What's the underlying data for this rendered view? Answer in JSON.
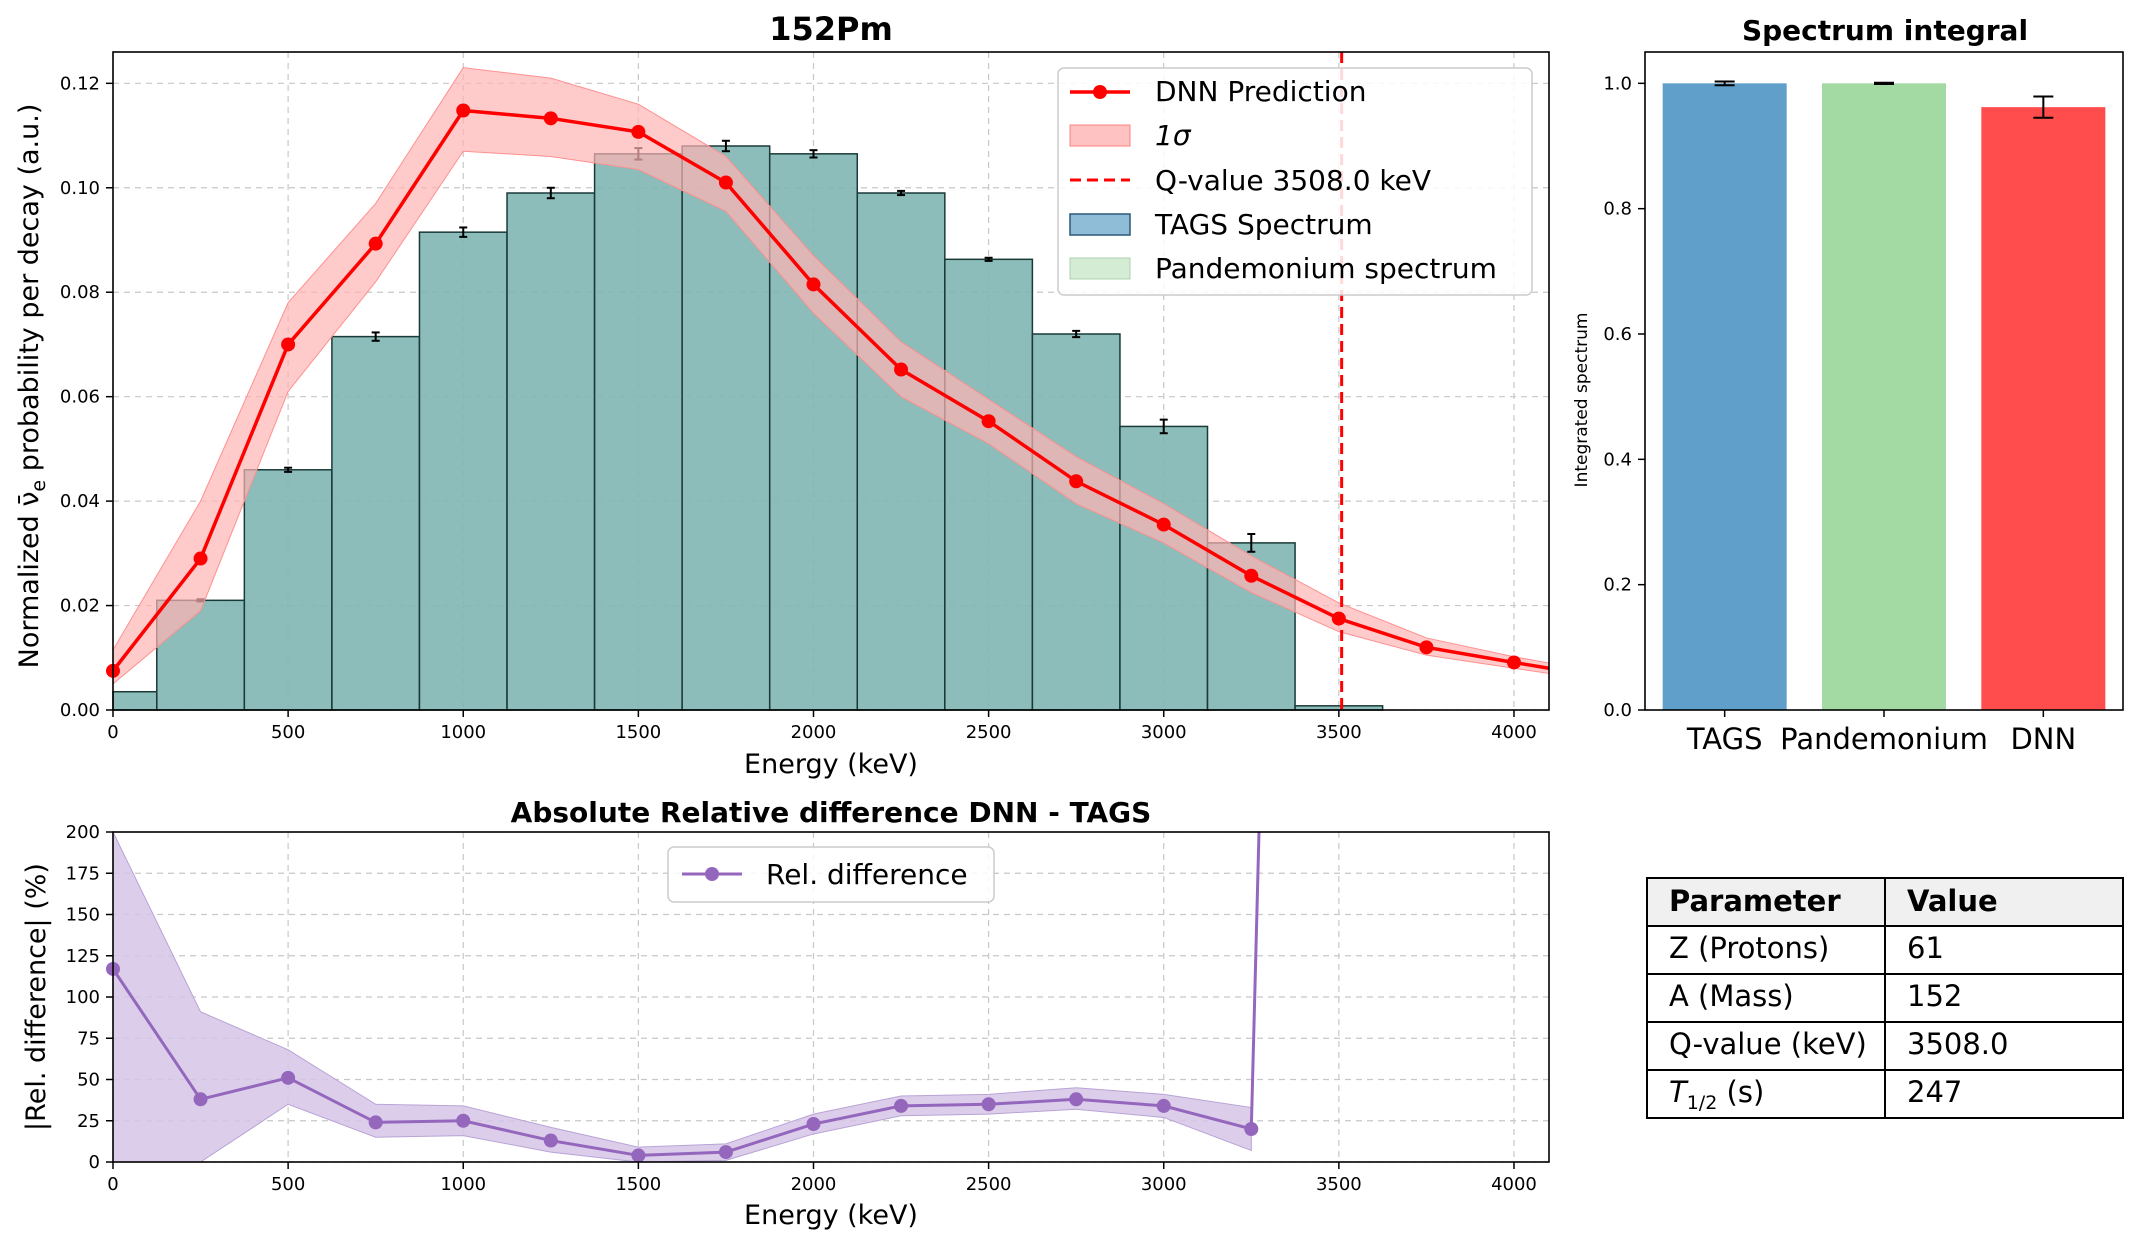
{
  "colors": {
    "dnn": "#ff0000",
    "band": "#ffb3b3",
    "qline": "#ff0000",
    "tags_fill": "#7fb6b2",
    "tags_edge": "#1a3a38",
    "pandemonium": "#d5ecd4",
    "rel": "#9467bd",
    "rel_band": "#d6c6e8",
    "bar_tags": "#5f9fca",
    "bar_pand": "#a3d9a3",
    "bar_dnn": "#ff4d4d",
    "grid": "#c8c8c8"
  },
  "chart_data": [
    {
      "id": "main",
      "type": "bar",
      "title": "152Pm",
      "xlabel": "Energy (keV)",
      "ylabel": "Normalized ν̄e probability per decay (a.u.)",
      "xlim": [
        0,
        4100
      ],
      "ylim": [
        0,
        0.126
      ],
      "xticks": [
        0,
        500,
        1000,
        1500,
        2000,
        2500,
        3000,
        3500,
        4000
      ],
      "yticks": [
        0.0,
        0.02,
        0.04,
        0.06,
        0.08,
        0.1,
        0.12
      ],
      "ytick_labels": [
        "0.00",
        "0.02",
        "0.04",
        "0.06",
        "0.08",
        "0.10",
        "0.12"
      ],
      "grid": true,
      "legend_position": "top-right",
      "legend": [
        "DNN Prediction",
        "1σ",
        "Q-value 3508.0 keV",
        "TAGS Spectrum",
        "Pandemonium spectrum"
      ],
      "tags": {
        "name": "TAGS Spectrum",
        "bin_width": 250,
        "centers": [
          0,
          250,
          500,
          750,
          1000,
          1250,
          1500,
          1750,
          2000,
          2250,
          2500,
          2750,
          3000,
          3250,
          3500,
          3750
        ],
        "values": [
          0.0035,
          0.021,
          0.046,
          0.0715,
          0.0915,
          0.099,
          0.1065,
          0.108,
          0.1065,
          0.099,
          0.0863,
          0.072,
          0.0543,
          0.032,
          0.0008,
          0.0
        ],
        "errors": [
          0.0,
          0.0002,
          0.0004,
          0.0008,
          0.0009,
          0.001,
          0.0011,
          0.001,
          0.0007,
          0.0004,
          0.0003,
          0.0006,
          0.0013,
          0.0017,
          0.0,
          0.0
        ]
      },
      "dnn": {
        "name": "DNN Prediction",
        "x": [
          0,
          250,
          500,
          750,
          1000,
          1250,
          1500,
          1750,
          2000,
          2250,
          2500,
          2750,
          3000,
          3250,
          3500,
          3750,
          4000,
          4100
        ],
        "values": [
          0.0075,
          0.029,
          0.07,
          0.0893,
          0.1148,
          0.1133,
          0.1107,
          0.101,
          0.0815,
          0.0652,
          0.0553,
          0.0438,
          0.0355,
          0.0257,
          0.0175,
          0.012,
          0.0091,
          0.008
        ],
        "band_low": [
          0.005,
          0.019,
          0.061,
          0.082,
          0.107,
          0.106,
          0.1035,
          0.0955,
          0.076,
          0.06,
          0.051,
          0.0395,
          0.032,
          0.0225,
          0.015,
          0.0105,
          0.008,
          0.007
        ],
        "band_high": [
          0.0115,
          0.04,
          0.078,
          0.097,
          0.123,
          0.121,
          0.116,
          0.106,
          0.087,
          0.0705,
          0.0595,
          0.0485,
          0.0395,
          0.0295,
          0.0205,
          0.0138,
          0.0102,
          0.009
        ]
      },
      "qvalue": {
        "name": "Q-value 3508.0 keV",
        "x": 3508.0
      }
    },
    {
      "id": "integral",
      "type": "bar",
      "title": "Spectrum integral",
      "ylabel": "Integrated spectrum",
      "ylim": [
        0,
        1.05
      ],
      "yticks": [
        0.0,
        0.2,
        0.4,
        0.6,
        0.8,
        1.0
      ],
      "ytick_labels": [
        "0.0",
        "0.2",
        "0.4",
        "0.6",
        "0.8",
        "1.0"
      ],
      "categories": [
        "TAGS",
        "Pandemonium",
        "DNN"
      ],
      "values": [
        1.0,
        1.0,
        0.962
      ],
      "errors": [
        0.003,
        0.001,
        0.017
      ]
    },
    {
      "id": "rel",
      "type": "line",
      "title": "Absolute Relative difference DNN - TAGS",
      "xlabel": "Energy (keV)",
      "ylabel": "|Rel. difference| (%)",
      "xlim": [
        0,
        4100
      ],
      "ylim": [
        0,
        200
      ],
      "xticks": [
        0,
        500,
        1000,
        1500,
        2000,
        2500,
        3000,
        3500,
        4000
      ],
      "yticks": [
        0,
        25,
        50,
        75,
        100,
        125,
        150,
        175,
        200
      ],
      "grid": true,
      "legend_position": "top-center",
      "legend": [
        "Rel. difference"
      ],
      "series": [
        {
          "name": "Rel. difference",
          "x": [
            0,
            250,
            500,
            750,
            1000,
            1250,
            1500,
            1750,
            2000,
            2250,
            2500,
            2750,
            3000,
            3250
          ],
          "values": [
            117,
            38,
            51,
            24,
            25,
            13,
            4,
            6,
            23,
            34,
            35,
            38,
            34,
            20
          ],
          "band_low": [
            0,
            0,
            35,
            15,
            16,
            6,
            0,
            1,
            17,
            28,
            29,
            32,
            27,
            7
          ],
          "band_high": [
            200,
            91,
            68,
            35,
            34,
            21,
            9,
            11,
            29,
            40,
            41,
            45,
            41,
            33
          ]
        }
      ],
      "spike": {
        "x_start": 3250,
        "y_start": 20,
        "x_end": 3272,
        "y_end": 200
      }
    }
  ],
  "table": {
    "headers": [
      "Parameter",
      "Value"
    ],
    "rows": [
      [
        "Z (Protons)",
        "61"
      ],
      [
        "A (Mass)",
        "152"
      ],
      [
        "Q-value (keV)",
        "3508.0"
      ],
      [
        "T1/2 (s)",
        "247"
      ]
    ],
    "halflife_main": "T",
    "halflife_sub": "1/2",
    "halflife_unit": " (s)"
  }
}
